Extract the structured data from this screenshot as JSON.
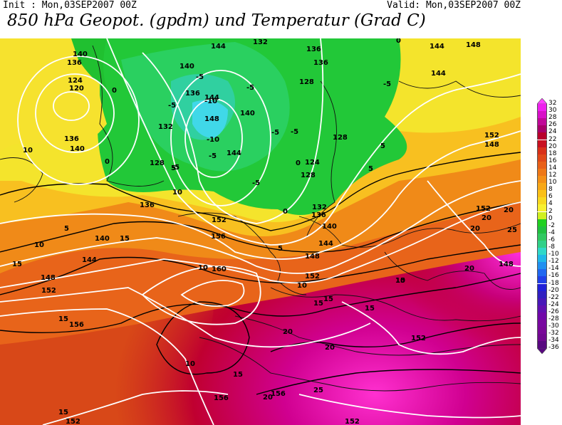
{
  "header": {
    "init": "Init : Mon,03SEP2007 00Z",
    "valid": "Valid: Mon,03SEP2007 00Z",
    "title": "850 hPa Geopot. (gpdm) und Temperatur (Grad C)"
  },
  "legend": {
    "values": [
      "32",
      "30",
      "28",
      "26",
      "24",
      "22",
      "20",
      "18",
      "16",
      "14",
      "12",
      "10",
      "8",
      "6",
      "4",
      "2",
      "0",
      "-2",
      "-4",
      "-6",
      "-8",
      "-10",
      "-12",
      "-14",
      "-16",
      "-18",
      "-20",
      "-22",
      "-24",
      "-26",
      "-28",
      "-30",
      "-32",
      "-34",
      "-36"
    ],
    "colors": [
      "#ff40ff",
      "#ee20ee",
      "#d810c8",
      "#c00898",
      "#a8006a",
      "#b8002c",
      "#c81020",
      "#d83018",
      "#e04818",
      "#e86018",
      "#ee7818",
      "#f49018",
      "#f8a818",
      "#fac018",
      "#f8d820",
      "#f8f030",
      "#d0f020",
      "#20d020",
      "#20c040",
      "#30c860",
      "#30d088",
      "#30d8c8",
      "#20b8e8",
      "#2090f0",
      "#2068f0",
      "#2040e8",
      "#2020d8",
      "#3020c0",
      "#4818b8",
      "#6010b0",
      "#7008a8",
      "#7808a0",
      "#780898",
      "#700890",
      "#580880"
    ]
  },
  "map": {
    "geopotential_labels": [
      "140",
      "136",
      "124",
      "120",
      "136",
      "140",
      "144",
      "140",
      "136",
      "132",
      "136",
      "144",
      "148",
      "144",
      "140",
      "132",
      "128",
      "128",
      "136",
      "128",
      "124",
      "128",
      "132",
      "136",
      "140",
      "144",
      "148",
      "144",
      "148",
      "152",
      "152",
      "156",
      "152",
      "148",
      "140",
      "144",
      "136",
      "148",
      "152",
      "156",
      "160",
      "152",
      "152",
      "156",
      "156",
      "152",
      "152",
      "148",
      "144"
    ],
    "temperature_labels": [
      "0",
      "0",
      "-5",
      "-10",
      "-5",
      "-5",
      "-5",
      "-10",
      "-5",
      "-5",
      "-5",
      "-5",
      "0",
      "0",
      "-5",
      "5",
      "5",
      "5",
      "5",
      "10",
      "10",
      "5",
      "0",
      "10",
      "15",
      "15",
      "10",
      "15",
      "15",
      "15",
      "20",
      "20",
      "15",
      "15",
      "10",
      "10",
      "20",
      "20",
      "25",
      "20",
      "20",
      "20",
      "25",
      "15",
      "15",
      "10"
    ]
  }
}
